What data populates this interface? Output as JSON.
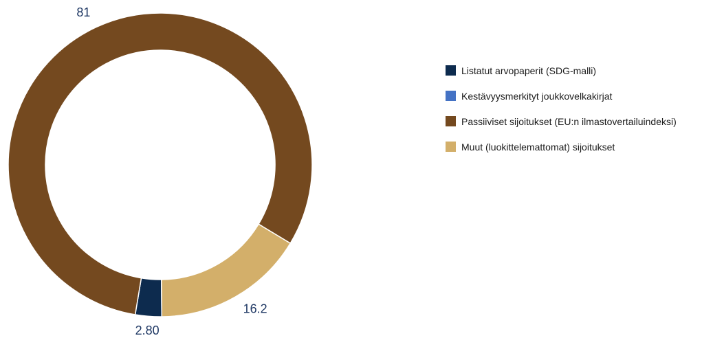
{
  "chart_data": {
    "type": "donut",
    "title": "",
    "slices": [
      {
        "name": "Listatut arvopaperit (SDG-malli)",
        "value": 2.8,
        "label": "2.80",
        "color": "#0d2b4e"
      },
      {
        "name": "Kestävyysmerkityt joukkovelkakirjat",
        "value": 0,
        "label": "",
        "color": "#4472c4"
      },
      {
        "name": "Passiiviset sijoitukset (EU:n ilmastovertailuindeksi)",
        "value": 81,
        "label": "81",
        "color": "#74491f"
      },
      {
        "name": "Muut (luokittelemattomat) sijoitukset",
        "value": 16.2,
        "label": "16.2",
        "color": "#d3af6a"
      }
    ],
    "legend_position": "right"
  },
  "legend": {
    "items": [
      {
        "label": "Listatut arvopaperit (SDG-malli)",
        "color": "#0d2b4e"
      },
      {
        "label": "Kestävyysmerkityt joukkovelkakirjat",
        "color": "#4472c4"
      },
      {
        "label": "Passiiviset sijoitukset (EU:n ilmastovertailuindeksi)",
        "color": "#74491f"
      },
      {
        "label": "Muut (luokittelemattomat) sijoitukset",
        "color": "#d3af6a"
      }
    ]
  }
}
